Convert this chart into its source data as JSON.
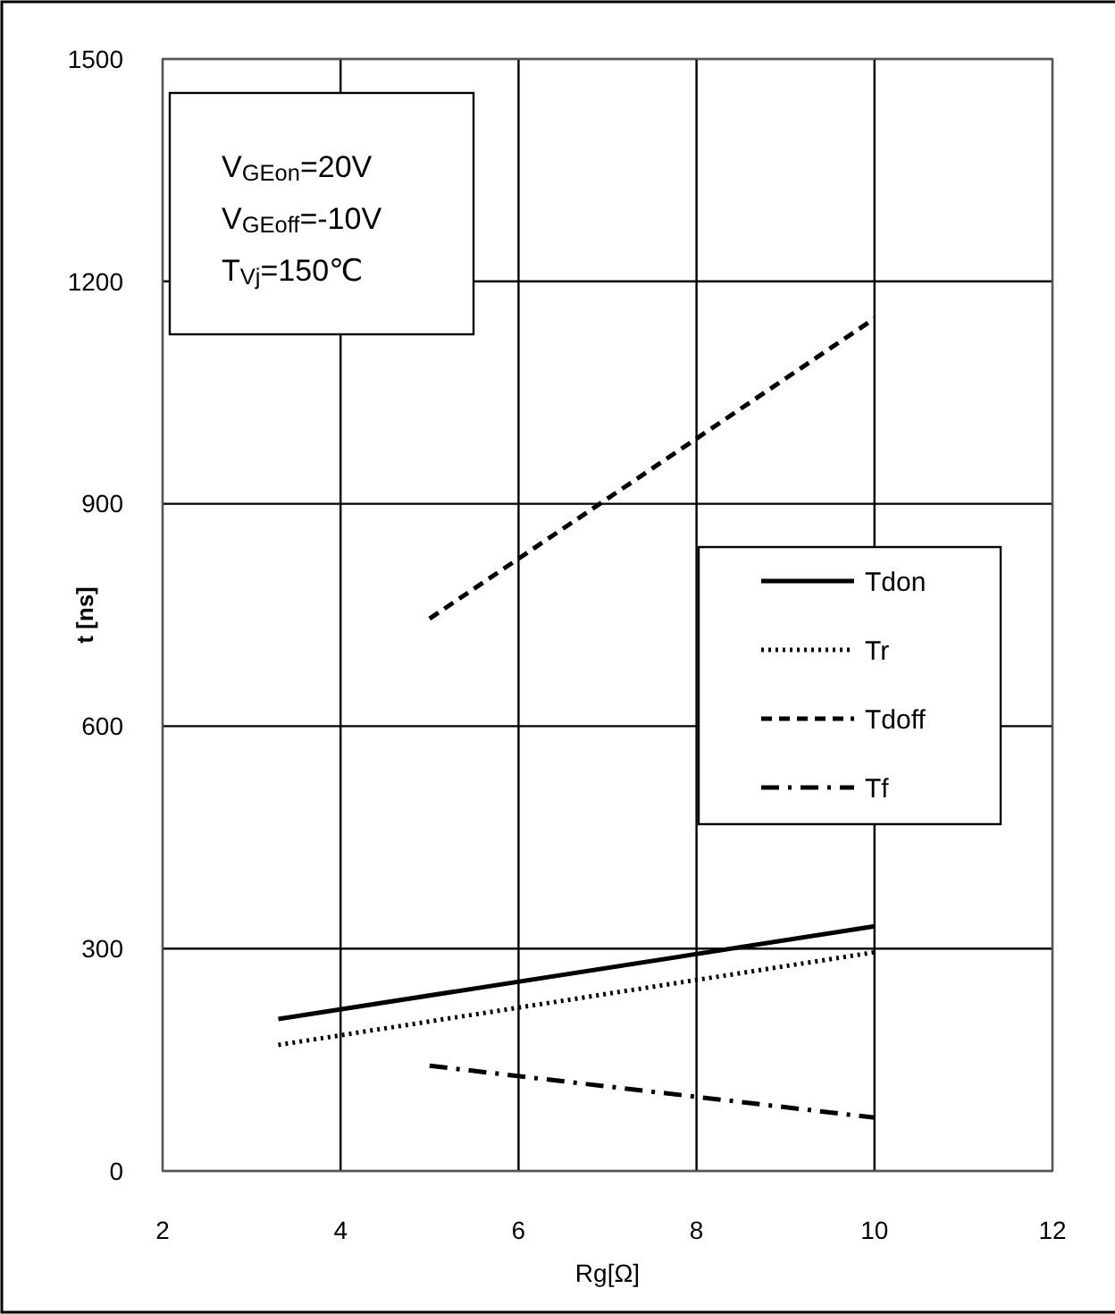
{
  "chart_data": {
    "type": "line",
    "xlabel": "Rg[Ω]",
    "ylabel": "t [ns]",
    "xlim": [
      2,
      12
    ],
    "xticks": [
      2,
      4,
      6,
      8,
      10,
      12
    ],
    "ylim": [
      0,
      1500
    ],
    "yticks": [
      0,
      300,
      600,
      900,
      1200,
      1500
    ],
    "grid": true,
    "legend": "right",
    "annotations": [
      "V$_{GEon}$=20V",
      "V$_{GEoff}$=-10V",
      "T$_{Vj}$=150℃"
    ],
    "series": [
      {
        "name": "Tdon",
        "color": "#000000",
        "line_style": "solid",
        "x": [
          3.3,
          10
        ],
        "values": [
          205,
          330
        ]
      },
      {
        "name": "Tr",
        "color": "#000000",
        "line_style": "dotted",
        "x": [
          3.3,
          10
        ],
        "values": [
          170,
          295
        ]
      },
      {
        "name": "Tdoff",
        "color": "#000000",
        "line_style": "dashed",
        "x": [
          5,
          10
        ],
        "values": [
          745,
          1150
        ]
      },
      {
        "name": "Tf",
        "color": "#000000",
        "line_style": "dashdot",
        "x": [
          5,
          10
        ],
        "values": [
          142,
          72
        ]
      }
    ]
  }
}
